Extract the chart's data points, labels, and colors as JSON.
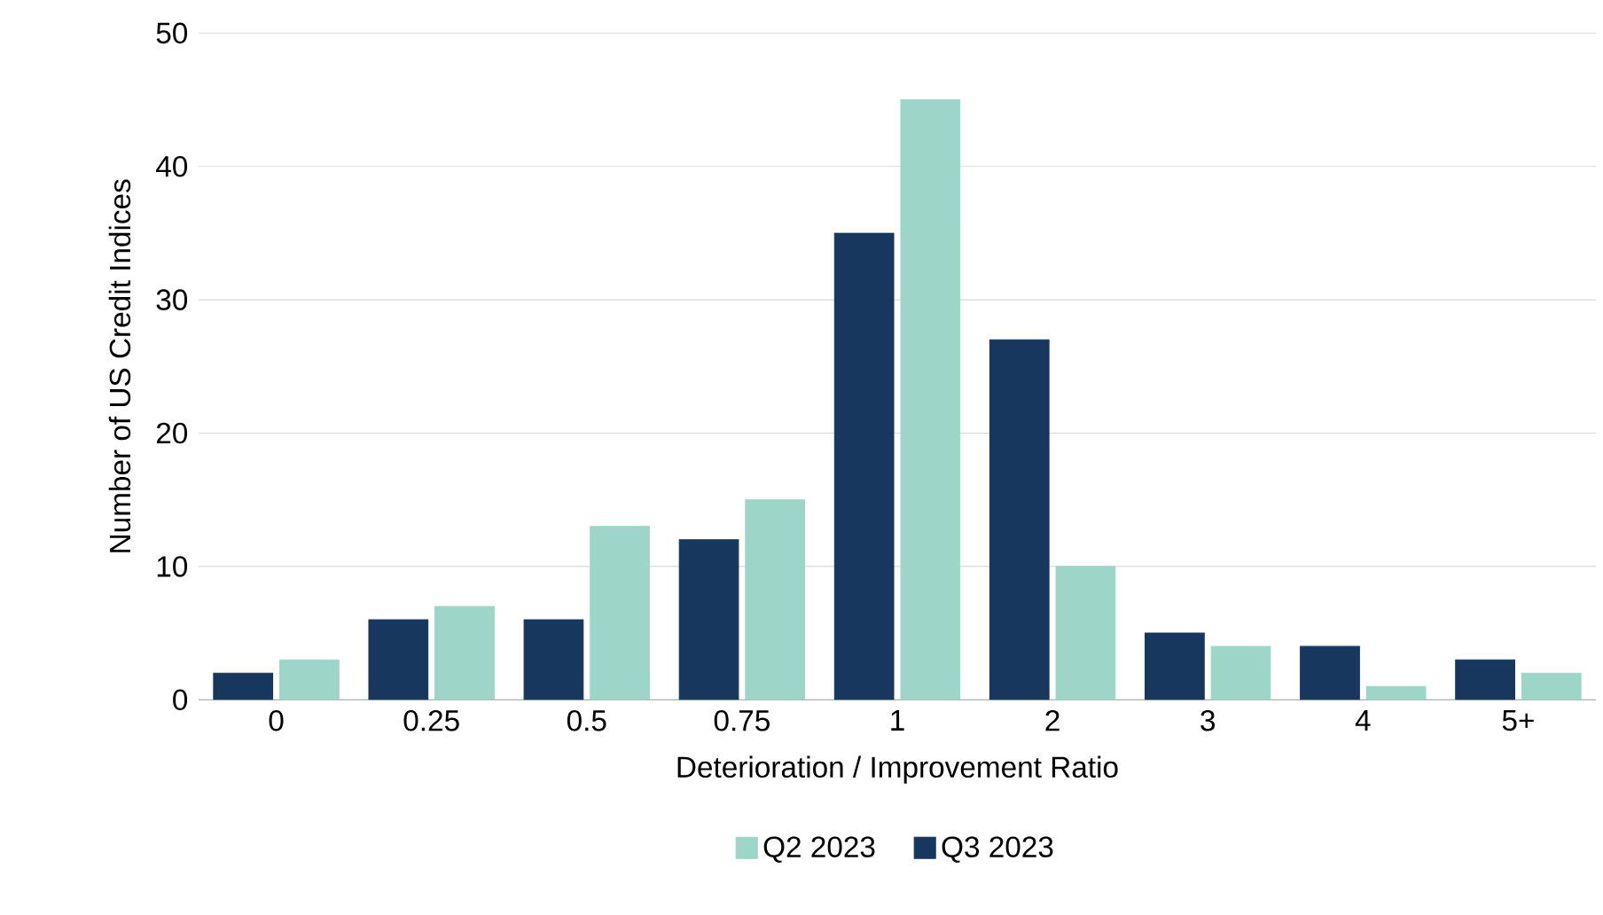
{
  "chart_data": {
    "type": "bar",
    "xlabel": "Deterioration / Improvement Ratio",
    "ylabel": "Number of US Credit Indices",
    "categories": [
      "0",
      "0.25",
      "0.5",
      "0.75",
      "1",
      "2",
      "3",
      "4",
      "5+"
    ],
    "series": [
      {
        "name": "Q3 2023",
        "color": "#17375e",
        "values": [
          2,
          6,
          6,
          12,
          35,
          27,
          5,
          4,
          3
        ]
      },
      {
        "name": "Q2 2023",
        "color": "#9dd6c8",
        "values": [
          3,
          7,
          13,
          15,
          45,
          10,
          4,
          1,
          2
        ]
      }
    ],
    "ylim": [
      0,
      50
    ],
    "yticks": [
      0,
      10,
      20,
      30,
      40,
      50
    ],
    "grid": "y",
    "legend": "bottom"
  }
}
